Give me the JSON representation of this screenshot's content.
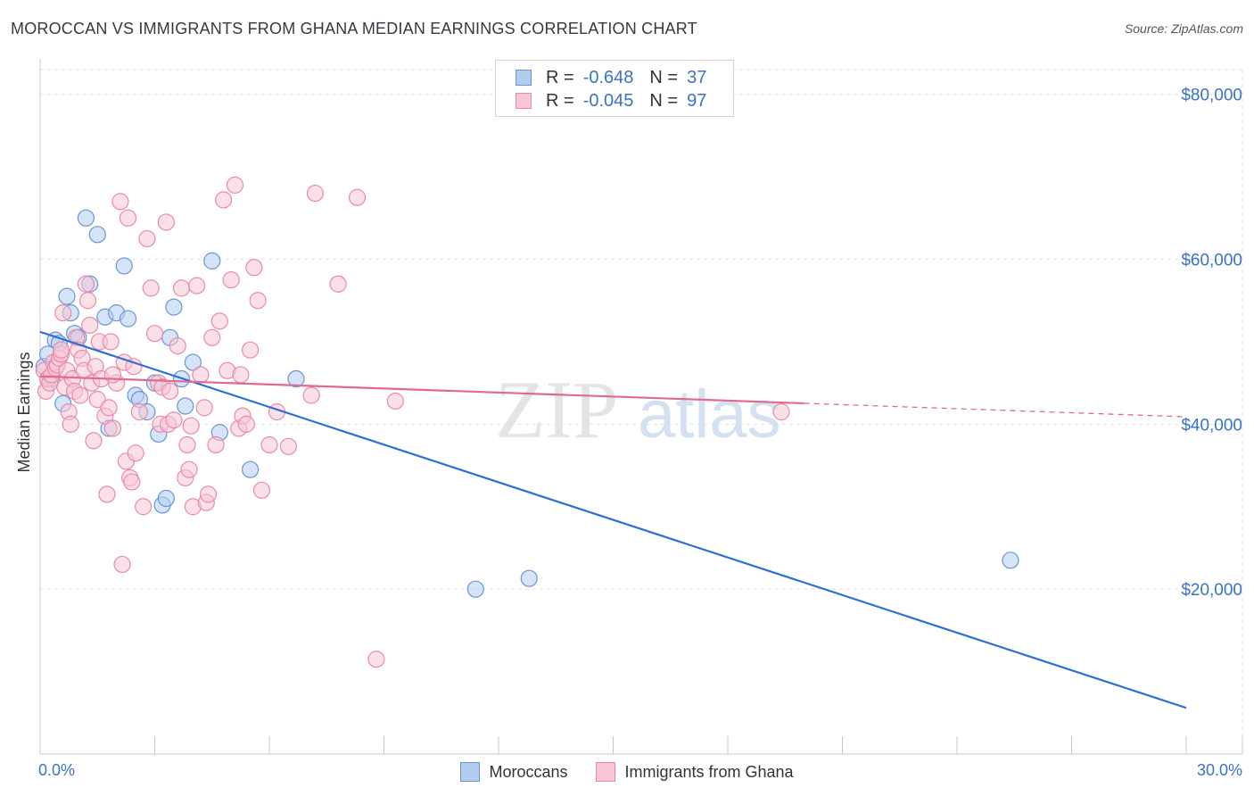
{
  "title": "MOROCCAN VS IMMIGRANTS FROM GHANA MEDIAN EARNINGS CORRELATION CHART",
  "source": "Source: ZipAtlas.com",
  "watermark": {
    "zip": "ZIP",
    "atlas": "atlas"
  },
  "stats_legend": {
    "moroccans": {
      "r_label": "R =",
      "r_value": "-0.648",
      "n_label": "N =",
      "n_value": "37"
    },
    "ghana": {
      "r_label": "R =",
      "r_value": "-0.045",
      "n_label": "N =",
      "n_value": "97"
    }
  },
  "bottom_legend": {
    "moroccans": "Moroccans",
    "ghana": "Immigrants from Ghana"
  },
  "colors": {
    "blue_fill": "#b3cdf0",
    "blue_stroke": "#6a95d6",
    "blue_line": "#2e6fd2",
    "pink_fill": "#f8c6d6",
    "pink_stroke": "#e98aaa",
    "pink_line": "#e06a92",
    "axis_text": "#3a72c8",
    "grid": "#e2e2e2"
  },
  "chart_data": {
    "type": "scatter",
    "title": "MOROCCAN VS IMMIGRANTS FROM GHANA MEDIAN EARNINGS CORRELATION CHART",
    "xlabel": "",
    "ylabel": "Median Earnings",
    "xlim": [
      0,
      30
    ],
    "ylim": [
      0,
      83000
    ],
    "x_tick_labels": [
      {
        "value": 0,
        "label": "0.0%"
      },
      {
        "value": 30,
        "label": "30.0%"
      }
    ],
    "y_ticks": [
      {
        "value": 20000,
        "label": "$20,000"
      },
      {
        "value": 40000,
        "label": "$40,000"
      },
      {
        "value": 60000,
        "label": "$60,000"
      },
      {
        "value": 80000,
        "label": "$80,000"
      }
    ],
    "series": [
      {
        "name": "Moroccans",
        "points": [
          [
            0.1,
            47000
          ],
          [
            0.2,
            48500
          ],
          [
            0.3,
            45500
          ],
          [
            0.4,
            50200
          ],
          [
            0.5,
            49800
          ],
          [
            0.6,
            42500
          ],
          [
            0.7,
            55500
          ],
          [
            0.8,
            53500
          ],
          [
            0.9,
            51000
          ],
          [
            1.0,
            50500
          ],
          [
            1.2,
            65000
          ],
          [
            1.3,
            57000
          ],
          [
            1.5,
            63000
          ],
          [
            1.7,
            53000
          ],
          [
            1.8,
            39500
          ],
          [
            2.0,
            53500
          ],
          [
            2.2,
            59200
          ],
          [
            2.3,
            52800
          ],
          [
            2.5,
            43500
          ],
          [
            2.6,
            43000
          ],
          [
            2.8,
            41500
          ],
          [
            3.0,
            45000
          ],
          [
            3.1,
            38800
          ],
          [
            3.2,
            30200
          ],
          [
            3.3,
            31000
          ],
          [
            3.4,
            50500
          ],
          [
            3.5,
            54200
          ],
          [
            3.7,
            45500
          ],
          [
            3.8,
            42200
          ],
          [
            4.0,
            47500
          ],
          [
            4.5,
            59800
          ],
          [
            4.7,
            39000
          ],
          [
            5.5,
            34500
          ],
          [
            6.7,
            45500
          ],
          [
            11.4,
            20000
          ],
          [
            12.8,
            21300
          ],
          [
            25.4,
            23500
          ]
        ],
        "trend": {
          "x0": 0,
          "y0": 51200,
          "x1": 30,
          "y1": 5600,
          "dashed_from": null
        }
      },
      {
        "name": "Immigrants from Ghana",
        "points": [
          [
            0.1,
            46500
          ],
          [
            0.15,
            44000
          ],
          [
            0.2,
            45500
          ],
          [
            0.25,
            45000
          ],
          [
            0.3,
            46000
          ],
          [
            0.35,
            47500
          ],
          [
            0.4,
            46800
          ],
          [
            0.45,
            47200
          ],
          [
            0.5,
            48000
          ],
          [
            0.55,
            48500
          ],
          [
            0.6,
            53500
          ],
          [
            0.65,
            44500
          ],
          [
            0.7,
            46500
          ],
          [
            0.75,
            41500
          ],
          [
            0.8,
            40000
          ],
          [
            0.85,
            45500
          ],
          [
            0.9,
            44000
          ],
          [
            0.95,
            50500
          ],
          [
            1.0,
            49000
          ],
          [
            1.05,
            43500
          ],
          [
            1.1,
            48000
          ],
          [
            1.15,
            46500
          ],
          [
            1.2,
            57000
          ],
          [
            1.25,
            55000
          ],
          [
            1.3,
            52000
          ],
          [
            1.35,
            45000
          ],
          [
            1.4,
            38000
          ],
          [
            1.45,
            47000
          ],
          [
            1.5,
            43000
          ],
          [
            1.55,
            50000
          ],
          [
            1.6,
            45500
          ],
          [
            1.7,
            41000
          ],
          [
            1.75,
            31500
          ],
          [
            1.8,
            42000
          ],
          [
            1.85,
            50000
          ],
          [
            1.9,
            39500
          ],
          [
            2.0,
            45000
          ],
          [
            2.1,
            67000
          ],
          [
            2.15,
            23000
          ],
          [
            2.2,
            47500
          ],
          [
            2.25,
            35500
          ],
          [
            2.3,
            65000
          ],
          [
            2.35,
            33500
          ],
          [
            2.4,
            33000
          ],
          [
            2.45,
            47000
          ],
          [
            2.5,
            36500
          ],
          [
            2.6,
            41500
          ],
          [
            2.7,
            30000
          ],
          [
            2.8,
            62500
          ],
          [
            2.9,
            56500
          ],
          [
            3.0,
            51000
          ],
          [
            3.1,
            45000
          ],
          [
            3.15,
            40000
          ],
          [
            3.2,
            44500
          ],
          [
            3.3,
            64500
          ],
          [
            3.35,
            40000
          ],
          [
            3.4,
            44000
          ],
          [
            3.5,
            40500
          ],
          [
            3.6,
            49500
          ],
          [
            3.7,
            56500
          ],
          [
            3.8,
            33500
          ],
          [
            3.85,
            37500
          ],
          [
            3.9,
            34500
          ],
          [
            4.0,
            30000
          ],
          [
            4.1,
            56800
          ],
          [
            4.2,
            46000
          ],
          [
            4.3,
            42000
          ],
          [
            4.35,
            30500
          ],
          [
            4.4,
            31500
          ],
          [
            4.5,
            50500
          ],
          [
            4.6,
            37500
          ],
          [
            4.7,
            52500
          ],
          [
            4.8,
            67200
          ],
          [
            4.9,
            46500
          ],
          [
            5.0,
            57500
          ],
          [
            5.1,
            69000
          ],
          [
            5.2,
            39500
          ],
          [
            5.25,
            46000
          ],
          [
            5.3,
            41000
          ],
          [
            5.4,
            40000
          ],
          [
            5.5,
            49000
          ],
          [
            5.6,
            59000
          ],
          [
            5.7,
            55000
          ],
          [
            5.8,
            32000
          ],
          [
            6.0,
            37500
          ],
          [
            6.2,
            41500
          ],
          [
            6.5,
            37300
          ],
          [
            7.1,
            43500
          ],
          [
            7.2,
            68000
          ],
          [
            7.8,
            57000
          ],
          [
            8.3,
            67500
          ],
          [
            8.8,
            11500
          ],
          [
            9.3,
            42800
          ],
          [
            19.4,
            41500
          ],
          [
            0.55,
            49000
          ],
          [
            1.9,
            46000
          ],
          [
            3.95,
            39800
          ]
        ],
        "trend": {
          "x0": 0,
          "y0": 45800,
          "x1": 30,
          "y1": 40900,
          "dashed_from": 20
        }
      }
    ]
  }
}
